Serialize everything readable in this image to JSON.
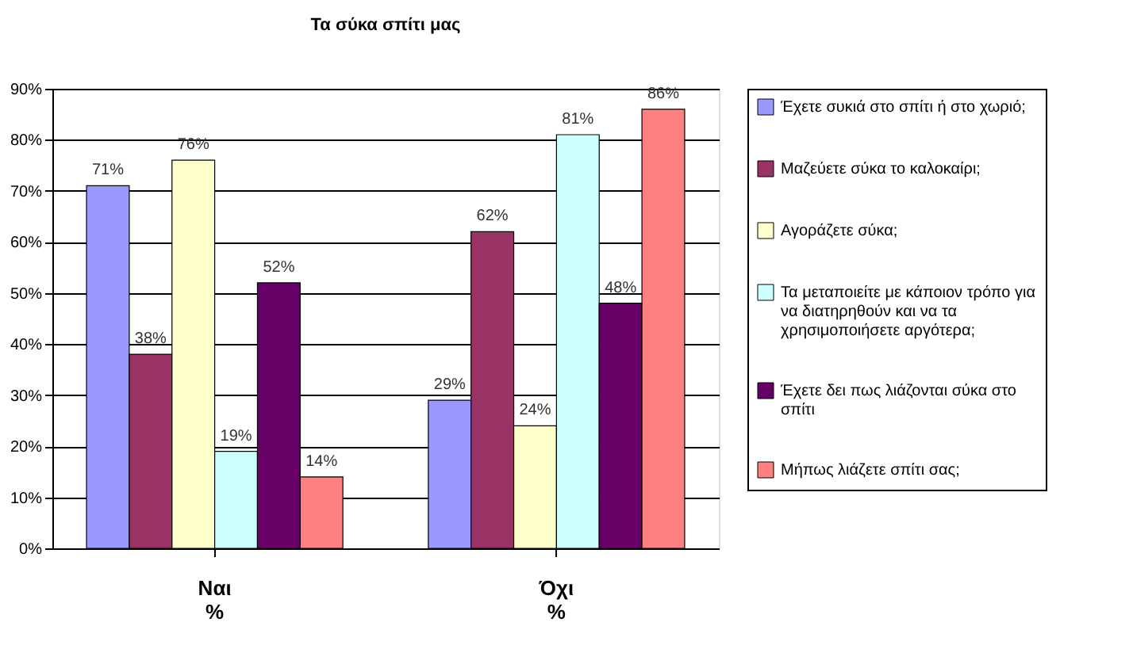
{
  "chart_data": {
    "type": "bar",
    "title": "Τα σύκα σπίτι μας",
    "categories": [
      "Ναι\n%",
      "Όχι\n%"
    ],
    "series": [
      {
        "name": "Έχετε συκιά στο σπίτι ή στο χωριό;",
        "color": "#9999ff",
        "values": [
          71,
          29
        ],
        "value_labels": [
          "71%",
          "29%"
        ]
      },
      {
        "name": "Μαζεύετε σύκα το καλοκαίρι;",
        "color": "#993366",
        "values": [
          38,
          62
        ],
        "value_labels": [
          "38%",
          "62%"
        ]
      },
      {
        "name": "Αγοράζετε σύκα;",
        "color": "#ffffcc",
        "values": [
          76,
          24
        ],
        "value_labels": [
          "76%",
          "24%"
        ]
      },
      {
        "name": "Τα μεταποιείτε με κάποιον τρόπο για να διατηρηθούν και να τα χρησιμοποιήσετε αργότερα;",
        "color": "#ccffff",
        "values": [
          19,
          81
        ],
        "value_labels": [
          "19%",
          "81%"
        ]
      },
      {
        "name": "Έχετε δει πως λιάζονται σύκα στο σπίτι",
        "color": "#660066",
        "values": [
          52,
          48
        ],
        "value_labels": [
          "52%",
          "48%"
        ]
      },
      {
        "name": "Μήπως λιάζετε σπίτι σας;",
        "color": "#ff8080",
        "values": [
          14,
          86
        ],
        "value_labels": [
          "14%",
          "86%"
        ]
      }
    ],
    "ylim": [
      0,
      90
    ],
    "yticks": [
      {
        "value": 0,
        "label": "0%"
      },
      {
        "value": 10,
        "label": "10%"
      },
      {
        "value": 20,
        "label": "20%"
      },
      {
        "value": 30,
        "label": "30%"
      },
      {
        "value": 40,
        "label": "40%"
      },
      {
        "value": 50,
        "label": "50%"
      },
      {
        "value": 60,
        "label": "60%"
      },
      {
        "value": 70,
        "label": "70%"
      },
      {
        "value": 80,
        "label": "80%"
      },
      {
        "value": 90,
        "label": "90%"
      }
    ],
    "grid": "y",
    "legend": "right",
    "data_labels": false
  }
}
